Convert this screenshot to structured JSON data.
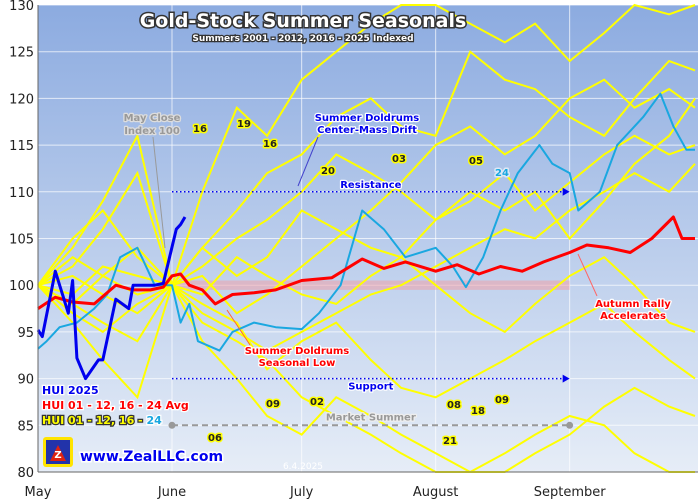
{
  "chart_data": {
    "type": "line",
    "title": "Gold-Stock Summer Seasonals",
    "subtitle": "Summers 2001 - 2012, 2016 - 2025 Indexed",
    "xlabel": "",
    "ylabel": "",
    "ylim": [
      80,
      130
    ],
    "yticks": [
      80,
      85,
      90,
      95,
      100,
      105,
      110,
      115,
      120,
      125,
      130
    ],
    "xticks": [
      {
        "label": "May",
        "date": "05-01"
      },
      {
        "label": "June",
        "date": "06-01"
      },
      {
        "label": "July",
        "date": "07-01"
      },
      {
        "label": "August",
        "date": "08-01"
      },
      {
        "label": "September",
        "date": "09-01"
      }
    ],
    "xlim": [
      "05-01",
      "09-30"
    ],
    "grid": true,
    "legend_placement": "bottom-left",
    "legend": [
      {
        "text": "HUI 2025",
        "color": "#0000ee"
      },
      {
        "text": "HUI 01 - 12, 16 - 24 Avg",
        "color": "#ff0000"
      },
      {
        "text_main": "HUI 01 - 12, 16 - ",
        "text_accent": "24",
        "color": "#ffff00",
        "accent_color": "#1aa7e0"
      }
    ],
    "series": [
      {
        "name": "HUI 2025",
        "color": "#0000ee",
        "x": [
          "05-01",
          "05-02",
          "05-05",
          "05-08",
          "05-09",
          "05-10",
          "05-12",
          "05-15",
          "05-16",
          "05-19",
          "05-22",
          "05-23",
          "05-28",
          "05-30",
          "06-02",
          "06-03",
          "06-04"
        ],
        "y": [
          95.2,
          94.5,
          101.5,
          97,
          100.5,
          92.2,
          90,
          92,
          92,
          98.5,
          97.5,
          100,
          100,
          100.2,
          106,
          106.5,
          107.3
        ]
      },
      {
        "name": "HUI 01 - 12, 16 - 24 Avg",
        "color": "#ff0000",
        "x": [
          "05-01",
          "05-05",
          "05-09",
          "05-14",
          "05-19",
          "05-23",
          "05-27",
          "05-30",
          "06-01",
          "06-03",
          "06-05",
          "06-08",
          "06-11",
          "06-15",
          "06-20",
          "06-25",
          "07-01",
          "07-08",
          "07-15",
          "07-20",
          "07-25",
          "08-01",
          "08-06",
          "08-11",
          "08-16",
          "08-21",
          "08-26",
          "09-01",
          "09-05",
          "09-10",
          "09-15",
          "09-20",
          "09-25",
          "09-27",
          "09-30"
        ],
        "y": [
          97.5,
          98.7,
          98.2,
          98,
          100,
          99.5,
          99.5,
          99.8,
          101,
          101.2,
          100,
          99.5,
          98,
          99,
          99.2,
          99.5,
          100.5,
          100.8,
          102.8,
          101.8,
          102.5,
          101.5,
          102.2,
          101.2,
          102,
          101.5,
          102.5,
          103.5,
          104.3,
          104,
          103.5,
          105,
          107.3,
          105,
          105
        ]
      },
      {
        "name": "24",
        "color": "#1aa7e0",
        "x": [
          "05-01",
          "05-03",
          "05-06",
          "05-10",
          "05-14",
          "05-17",
          "05-20",
          "05-24",
          "05-28",
          "06-01",
          "06-03",
          "06-05",
          "06-07",
          "06-12",
          "06-15",
          "06-20",
          "06-25",
          "07-01",
          "07-05",
          "07-10",
          "07-15",
          "07-20",
          "07-25",
          "08-01",
          "08-05",
          "08-08",
          "08-12",
          "08-16",
          "08-20",
          "08-25",
          "08-28",
          "09-01",
          "09-03",
          "09-08",
          "09-12",
          "09-18",
          "09-22",
          "09-25",
          "09-28",
          "09-30"
        ],
        "y": [
          93.2,
          94,
          95.5,
          96,
          97.5,
          99,
          103,
          104,
          100,
          100,
          96,
          98,
          94,
          93,
          95,
          96,
          95.5,
          95.3,
          97,
          100,
          108,
          106,
          103,
          104,
          102,
          99.8,
          103,
          108,
          112,
          115,
          113,
          112,
          108,
          110,
          115,
          118,
          120.5,
          117,
          114.5,
          114.5
        ]
      },
      {
        "name": "",
        "color": "#ffff00",
        "x": [
          "05-01",
          "05-09",
          "05-16",
          "05-24",
          "06-01",
          "06-08",
          "06-16",
          "06-23",
          "07-01",
          "07-09",
          "07-17",
          "07-24",
          "08-01",
          "08-09",
          "08-17",
          "08-24",
          "09-01",
          "09-09",
          "09-16",
          "09-24",
          "09-30"
        ],
        "y": [
          100,
          102,
          106,
          112,
          100,
          110,
          119,
          116,
          122,
          125,
          128,
          130,
          130,
          128,
          126,
          128,
          124,
          127,
          130,
          129,
          130
        ]
      },
      {
        "name": "",
        "color": "#ffff00",
        "x": [
          "05-01",
          "05-09",
          "05-16",
          "05-24",
          "06-01",
          "06-08",
          "06-16",
          "06-23",
          "07-01",
          "07-09",
          "07-17",
          "07-24",
          "08-01",
          "08-09",
          "08-17",
          "08-24",
          "09-01",
          "09-09",
          "09-16",
          "09-24",
          "09-30"
        ],
        "y": [
          100,
          104,
          109,
          116,
          100,
          104,
          108,
          112,
          114,
          118,
          120,
          117,
          116,
          125,
          122,
          121,
          118,
          116,
          120,
          124,
          123
        ]
      },
      {
        "name": "",
        "color": "#ffff00",
        "x": [
          "05-01",
          "05-09",
          "05-16",
          "05-24",
          "06-01",
          "06-08",
          "06-16",
          "06-23",
          "07-01",
          "07-09",
          "07-17",
          "07-24",
          "08-01",
          "08-09",
          "08-17",
          "08-24",
          "09-01",
          "09-09",
          "09-16",
          "09-24",
          "09-30"
        ],
        "y": [
          100,
          98,
          96,
          94,
          100,
          96,
          94,
          92,
          88,
          86,
          84,
          82,
          80,
          80,
          82,
          84,
          86,
          85,
          82,
          80,
          80
        ]
      },
      {
        "name": "",
        "color": "#ffff00",
        "x": [
          "05-01",
          "05-09",
          "05-16",
          "05-24",
          "06-01",
          "06-08",
          "06-16",
          "06-23",
          "07-01",
          "07-09",
          "07-17",
          "07-24",
          "08-01",
          "08-09",
          "08-17",
          "08-24",
          "09-01",
          "09-09",
          "09-16",
          "09-24",
          "09-30"
        ],
        "y": [
          100,
          101,
          99,
          97,
          100,
          97,
          95,
          93,
          95,
          97,
          99,
          100,
          102,
          104,
          106,
          105,
          108,
          110,
          112,
          110,
          113
        ]
      },
      {
        "name": "",
        "color": "#ffff00",
        "x": [
          "05-01",
          "05-09",
          "05-16",
          "05-24",
          "06-01",
          "06-08",
          "06-16",
          "06-23",
          "07-01",
          "07-09",
          "07-17",
          "07-24",
          "08-01",
          "08-09",
          "08-17",
          "08-24",
          "09-01",
          "09-09",
          "09-16",
          "09-24",
          "09-30"
        ],
        "y": [
          100,
          99,
          102,
          101,
          100,
          98,
          96,
          91,
          94,
          96,
          92,
          89,
          88,
          90,
          92,
          94,
          96,
          98,
          95,
          92,
          90
        ]
      },
      {
        "name": "",
        "color": "#ffff00",
        "x": [
          "05-01",
          "05-09",
          "05-16",
          "05-24",
          "06-01",
          "06-08",
          "06-16",
          "06-23",
          "07-01",
          "07-09",
          "07-17",
          "07-24",
          "08-01",
          "08-09",
          "08-17",
          "08-24",
          "09-01",
          "09-09",
          "09-16",
          "09-24",
          "09-30"
        ],
        "y": [
          100,
          103,
          101,
          99,
          100,
          102,
          105,
          107,
          110,
          114,
          112,
          110,
          107,
          109,
          112,
          108,
          111,
          114,
          116,
          114,
          115
        ]
      },
      {
        "name": "",
        "color": "#ffff00",
        "x": [
          "05-01",
          "05-09",
          "05-16",
          "05-24",
          "06-01",
          "06-08",
          "06-16",
          "06-23",
          "07-01",
          "07-09",
          "07-17",
          "07-24",
          "08-01",
          "08-09",
          "08-17",
          "08-24",
          "09-01",
          "09-09",
          "09-16",
          "09-24",
          "09-30"
        ],
        "y": [
          100,
          97,
          95,
          98,
          100,
          99,
          103,
          101,
          99,
          98,
          101,
          103,
          100,
          97,
          95,
          98,
          101,
          103,
          100,
          96,
          95
        ]
      },
      {
        "name": "",
        "color": "#ffff00",
        "x": [
          "05-01",
          "05-09",
          "05-16",
          "05-24",
          "06-01",
          "06-08",
          "06-16",
          "06-23",
          "07-01",
          "07-09",
          "07-17",
          "07-24",
          "08-01",
          "08-09",
          "08-17",
          "08-24",
          "09-01",
          "09-09",
          "09-16",
          "09-24",
          "09-30"
        ],
        "y": [
          100,
          96,
          92,
          88,
          100,
          94,
          90,
          86,
          84,
          88,
          86,
          84,
          82,
          80,
          80,
          82,
          84,
          87,
          89,
          87,
          86
        ]
      },
      {
        "name": "",
        "color": "#ffff00",
        "x": [
          "05-01",
          "05-09",
          "05-16",
          "05-24",
          "06-01",
          "06-08",
          "06-16",
          "06-23",
          "07-01",
          "07-09",
          "07-17",
          "07-24",
          "08-01",
          "08-09",
          "08-17",
          "08-24",
          "09-01",
          "09-09",
          "09-16",
          "09-24",
          "09-30"
        ],
        "y": [
          100,
          105,
          108,
          103,
          100,
          104,
          101,
          103,
          108,
          106,
          104,
          103,
          107,
          110,
          108,
          110,
          105,
          109,
          113,
          116,
          120
        ]
      },
      {
        "name": "",
        "color": "#ffff00",
        "x": [
          "05-01",
          "05-09",
          "05-16",
          "05-24",
          "06-01",
          "06-08",
          "06-16",
          "06-23",
          "07-01",
          "07-09",
          "07-17",
          "07-24",
          "08-01",
          "08-09",
          "08-17",
          "08-24",
          "09-01",
          "09-09",
          "09-16",
          "09-24",
          "09-30"
        ],
        "y": [
          100,
          98,
          101,
          104,
          100,
          101,
          97,
          99,
          102,
          105,
          108,
          111,
          115,
          117,
          114,
          116,
          120,
          122,
          119,
          121,
          119
        ]
      }
    ],
    "reference_lines": [
      {
        "label": "Resistance",
        "value": 110,
        "from": "06-01",
        "to": "09-01",
        "color": "#0000ee"
      },
      {
        "label": "Support",
        "value": 90,
        "from": "06-01",
        "to": "09-01",
        "color": "#0000ee"
      },
      {
        "label": "Market Summer",
        "value": 85,
        "from": "06-01",
        "to": "09-01",
        "color": "#999999"
      }
    ],
    "annotations": [
      {
        "text": [
          "May Close",
          "Index 100"
        ],
        "color": "#999999"
      },
      {
        "text": [
          "Summer Doldrums",
          "Center-Mass Drift"
        ],
        "color": "#0000ee"
      },
      {
        "text": [
          "Summer Doldrums",
          "Seasonal Low"
        ],
        "color": "#ff0000"
      },
      {
        "text": [
          "Autumn Rally",
          "Accelerates"
        ],
        "color": "#ff0000"
      }
    ],
    "year_labels": [
      "19",
      "16",
      "16",
      "20",
      "03",
      "05",
      "24",
      "09",
      "02",
      "06",
      "08",
      "18",
      "09",
      "21"
    ],
    "watermark": "www.ZealLLC.com",
    "date_stamp": "6.4.2025"
  }
}
